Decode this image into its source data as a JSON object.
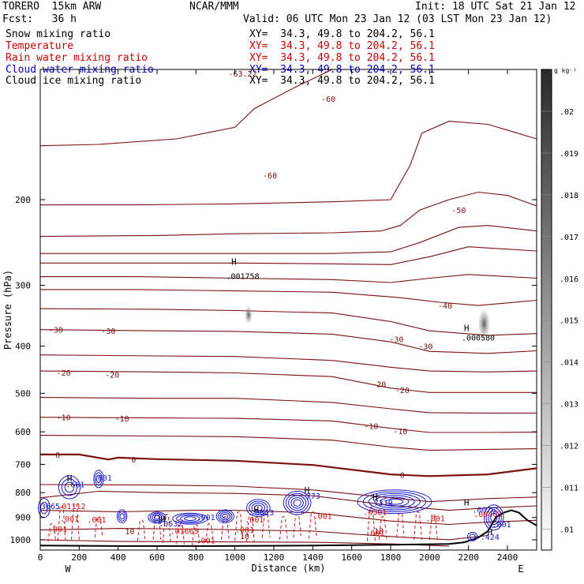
{
  "header": {
    "model": "TORERO  15km ARW",
    "forecast": "Fcst:   36 h",
    "center": "NCAR/MMM",
    "init": "Init: 18 UTC Sat 21 Jan 12",
    "valid": "Valid: 06 UTC Mon 23 Jan 12 (03 LST Mon 23 Jan 12)"
  },
  "fields": [
    {
      "label": "Snow mixing ratio",
      "xy": "XY=  34.3, 49.8 to 204.2, 56.1",
      "color": "#000000"
    },
    {
      "label": "Temperature",
      "xy": "XY=  34.3, 49.8 to 204.2, 56.1",
      "color": "#cc0000"
    },
    {
      "label": "Rain water mixing ratio",
      "xy": "XY=  34.3, 49.8 to 204.2, 56.1",
      "color": "#cc0000"
    },
    {
      "label": "Cloud water mixing ratio",
      "xy": "XY=  34.3, 49.8 to 204.2, 56.1",
      "color": "#0000cc"
    },
    {
      "label": "Cloud ice mixing ratio",
      "xy": "XY=  34.3, 49.8 to 204.2, 56.1",
      "color": "#000000"
    }
  ],
  "chart_data": {
    "type": "contour-cross-section",
    "xlabel": "Distance (km)",
    "ylabel": "Pressure (hPa)",
    "xlim": [
      0,
      2550
    ],
    "ylim": [
      1050,
      100
    ],
    "y_log_scale": true,
    "x_ticks": [
      0,
      200,
      400,
      600,
      800,
      1000,
      1200,
      1400,
      1600,
      1800,
      2000,
      2200,
      2400
    ],
    "y_ticks": [
      200,
      300,
      400,
      500,
      600,
      700,
      800,
      900,
      1000
    ],
    "endpoints": {
      "left": "W",
      "right": "E"
    },
    "colorbar": {
      "unit": "g kg⁻¹",
      "levels": [
        ".01",
        ".011",
        ".012",
        ".013",
        ".014",
        ".015",
        ".016",
        ".017",
        ".018",
        ".019",
        ".02"
      ]
    },
    "temperature_labels": [
      {
        "text": "-63.22",
        "x": 1040,
        "p": 110
      },
      {
        "text": "-60",
        "x": 1480,
        "p": 124
      },
      {
        "text": "-60",
        "x": 1180,
        "p": 178
      },
      {
        "text": "-50",
        "x": 2150,
        "p": 210
      },
      {
        "text": "-40",
        "x": 2080,
        "p": 330
      },
      {
        "text": "-30",
        "x": 80,
        "p": 370
      },
      {
        "text": "-30",
        "x": 350,
        "p": 372
      },
      {
        "text": "-30",
        "x": 1830,
        "p": 387
      },
      {
        "text": "-30",
        "x": 1980,
        "p": 400
      },
      {
        "text": "-20",
        "x": 120,
        "p": 453
      },
      {
        "text": "-20",
        "x": 370,
        "p": 457
      },
      {
        "text": "-20",
        "x": 1740,
        "p": 478
      },
      {
        "text": "-20",
        "x": 1860,
        "p": 492
      },
      {
        "text": "-10",
        "x": 120,
        "p": 560
      },
      {
        "text": "-10",
        "x": 420,
        "p": 563
      },
      {
        "text": "-10",
        "x": 1700,
        "p": 583
      },
      {
        "text": "-10",
        "x": 1850,
        "p": 597
      },
      {
        "text": "0",
        "x": 90,
        "p": 668
      },
      {
        "text": "0",
        "x": 480,
        "p": 683
      },
      {
        "text": "0",
        "x": 1860,
        "p": 735
      },
      {
        "text": "10",
        "x": 460,
        "p": 960
      },
      {
        "text": "10",
        "x": 1050,
        "p": 982
      },
      {
        "text": "10",
        "x": 1740,
        "p": 958
      }
    ],
    "rain_labels": [
      {
        "text": ".01112",
        "x": 160,
        "p": 852
      },
      {
        "text": ".001",
        "x": 150,
        "p": 904
      },
      {
        "text": ".001",
        "x": 290,
        "p": 908
      },
      {
        "text": ".001",
        "x": 90,
        "p": 950
      },
      {
        "text": ".01665",
        "x": 740,
        "p": 958
      },
      {
        "text": ".001",
        "x": 850,
        "p": 1003
      },
      {
        "text": ".001",
        "x": 1050,
        "p": 952
      },
      {
        "text": ".001",
        "x": 1100,
        "p": 908
      },
      {
        "text": ".001",
        "x": 1450,
        "p": 893
      },
      {
        "text": ".0301",
        "x": 1720,
        "p": 876
      },
      {
        "text": ".001",
        "x": 1720,
        "p": 968
      },
      {
        "text": ".001",
        "x": 2030,
        "p": 902
      },
      {
        "text": ".00403",
        "x": 2300,
        "p": 884
      }
    ],
    "cloud_water_labels": [
      {
        "text": ".001",
        "x": 320,
        "p": 745
      },
      {
        "text": ".3665",
        "x": 40,
        "p": 852
      },
      {
        "text": ".001",
        "x": 850,
        "p": 898
      },
      {
        "text": ".0532",
        "x": 670,
        "p": 925
      },
      {
        "text": ".1",
        "x": 600,
        "p": 912
      },
      {
        "text": ".0813",
        "x": 1140,
        "p": 878
      },
      {
        "text": ".0076",
        "x": 2280,
        "p": 866
      },
      {
        "text": ".001",
        "x": 2370,
        "p": 928
      }
    ],
    "maxima": [
      {
        "text": ".001758",
        "x": 1040,
        "p": 287,
        "field": "snow"
      },
      {
        "text": ".000580",
        "x": 2250,
        "p": 384,
        "field": "snow"
      },
      {
        "text": ".661",
        "x": 180,
        "p": 768,
        "field": "cloud_water"
      },
      {
        "text": ".773",
        "x": 1390,
        "p": 811,
        "field": "cloud_water"
      },
      {
        "text": ".7319",
        "x": 1750,
        "p": 837,
        "field": "cloud_water"
      },
      {
        "text": ".424",
        "x": 2310,
        "p": 986,
        "field": "cloud_water"
      }
    ],
    "max_markers": [
      {
        "text": "H",
        "x": 995,
        "p": 268
      },
      {
        "text": "H",
        "x": 2190,
        "p": 367
      },
      {
        "text": "H",
        "x": 150,
        "p": 748
      },
      {
        "text": "H",
        "x": 1370,
        "p": 790
      },
      {
        "text": "H",
        "x": 1720,
        "p": 817
      },
      {
        "text": "H",
        "x": 2190,
        "p": 838
      },
      {
        "text": "H",
        "x": 2310,
        "p": 963
      },
      {
        "text": "H",
        "x": 630,
        "p": 908
      },
      {
        "text": "H",
        "x": 1110,
        "p": 867
      }
    ]
  }
}
